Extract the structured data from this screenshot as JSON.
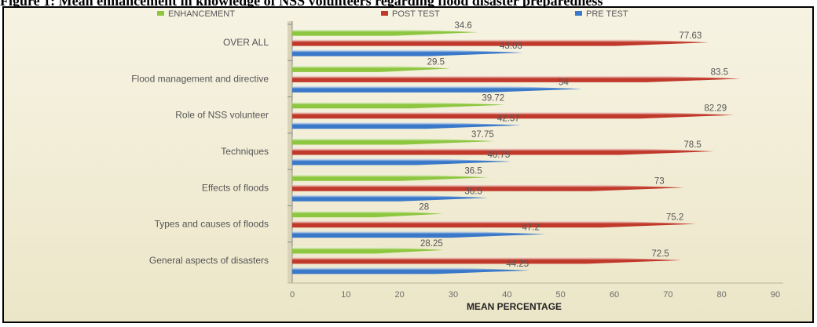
{
  "caption": "Figure 1: Mean enhancement in knowledge of NSS volunteers regarding flood disaster preparedness",
  "chart_data": {
    "type": "bar",
    "orientation": "horizontal",
    "categories": [
      "OVER ALL",
      "Flood management and directive",
      "Role of NSS volunteer",
      "Techniques",
      "Effects of floods",
      "Types and causes of floods",
      "General aspects of disasters"
    ],
    "series": [
      {
        "name": "ENHANCEMENT",
        "color": "#8dc63f",
        "values": [
          34.6,
          29.5,
          39.72,
          37.75,
          36.5,
          28,
          28.25
        ],
        "labels": [
          "34.6",
          "29.5",
          "39.72",
          "37.75",
          "36.5",
          "28",
          "28.25"
        ]
      },
      {
        "name": "POST TEST",
        "color": "#c0392b",
        "values": [
          77.63,
          83.5,
          82.29,
          78.5,
          73,
          75.2,
          72.5
        ],
        "labels": [
          "77.63",
          "83.5",
          "82.29",
          "78.5",
          "73",
          "75.2",
          "72.5"
        ]
      },
      {
        "name": "PRE TEST",
        "color": "#3a78c9",
        "values": [
          43.03,
          54,
          42.57,
          40.75,
          36.5,
          47.2,
          44.25
        ],
        "labels": [
          "43.03",
          "54",
          "42.57",
          "40.75",
          "36.5",
          "47.2",
          "44.25"
        ]
      }
    ],
    "xlabel": "MEAN PERCENTAGE",
    "ylabel": "",
    "xlim": [
      0,
      90
    ],
    "xticks": [
      "0",
      "10",
      "20",
      "30",
      "40",
      "50",
      "60",
      "70",
      "80",
      "90"
    ],
    "legend_position": "top",
    "grid": false
  }
}
